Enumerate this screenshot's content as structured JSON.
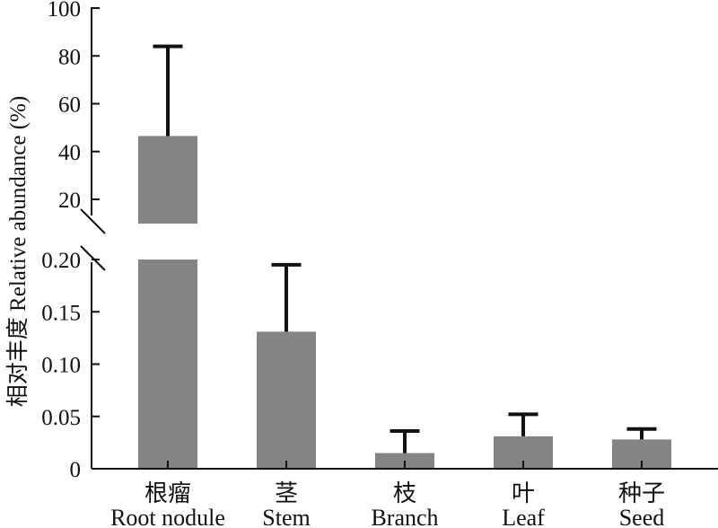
{
  "chart_data": {
    "type": "bar",
    "ylabel": "相对丰度 Relative abundance (%)",
    "axis_break": true,
    "upper_ticks": [
      "20",
      "40",
      "60",
      "80",
      "100"
    ],
    "lower_ticks": [
      "0",
      "0.05",
      "0.10",
      "0.15",
      "0.20"
    ],
    "upper_ylim": [
      8,
      100
    ],
    "lower_ylim": [
      0,
      0.2
    ],
    "categories": [
      {
        "cn": "根瘤",
        "en": "Root nodule"
      },
      {
        "cn": "茎",
        "en": "Stem"
      },
      {
        "cn": "枝",
        "en": "Branch"
      },
      {
        "cn": "叶",
        "en": "Leaf"
      },
      {
        "cn": "种子",
        "en": "Seed"
      }
    ],
    "values": [
      46.5,
      0.131,
      0.015,
      0.031,
      0.028
    ],
    "errors": [
      37.5,
      0.064,
      0.021,
      0.021,
      0.01
    ],
    "colors": {
      "bar": "#858386",
      "error": "#111111",
      "axis": "#111111"
    }
  }
}
